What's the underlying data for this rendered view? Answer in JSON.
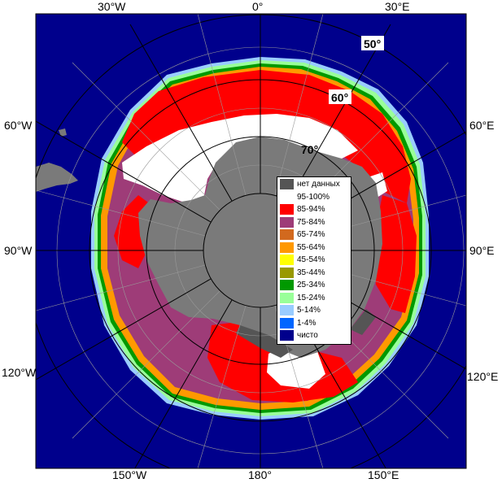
{
  "map": {
    "colors": {
      "ocean": "#00008c",
      "land": "#7a7a7a",
      "ice_100": "#ffffff",
      "ice_90": "#ff0000",
      "ice_80": "#9e3c78",
      "ice_70": "#d2691e",
      "ice_60": "#ff9900",
      "ice_50": "#ffff00",
      "ice_40": "#999900",
      "ice_30": "#009900",
      "ice_20": "#99ff99",
      "ice_10": "#99ccff",
      "ice_5": "#0066ff",
      "nodata": "#555555",
      "grid": "#000000"
    },
    "longitude_labels": {
      "top": [
        "30°W",
        "0°",
        "30°E"
      ],
      "left": [
        "60°W",
        "90°W",
        "120°W"
      ],
      "right": [
        "60°E",
        "90°E",
        "120°E"
      ],
      "bottom": [
        "150°W",
        "180°",
        "150°E"
      ]
    },
    "latitude_labels": [
      "50°",
      "60°",
      "70°"
    ]
  },
  "legend": {
    "items": [
      {
        "label": "нет данных",
        "color": "#555555"
      },
      {
        "label": "95-100%",
        "color": "#ffffff"
      },
      {
        "label": "85-94%",
        "color": "#ff0000"
      },
      {
        "label": "75-84%",
        "color": "#9e3c78"
      },
      {
        "label": "65-74%",
        "color": "#d2691e"
      },
      {
        "label": "55-64%",
        "color": "#ff9900"
      },
      {
        "label": "45-54%",
        "color": "#ffff00"
      },
      {
        "label": "35-44%",
        "color": "#999900"
      },
      {
        "label": "25-34%",
        "color": "#009900"
      },
      {
        "label": "15-24%",
        "color": "#99ff99"
      },
      {
        "label": "5-14%",
        "color": "#99ccff"
      },
      {
        "label": "1-4%",
        "color": "#0066ff"
      },
      {
        "label": "чисто",
        "color": "#00008c"
      }
    ]
  }
}
